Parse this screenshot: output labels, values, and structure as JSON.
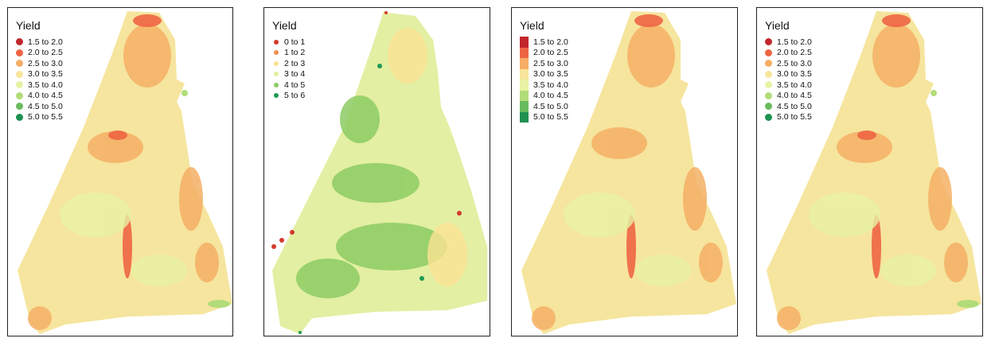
{
  "panels": [
    {
      "legend_title": "Yield",
      "symbol": "dot",
      "classes": [
        {
          "label": "1.5 to 2.0",
          "color": "#c2272d"
        },
        {
          "label": "2.0 to 2.5",
          "color": "#ee6543"
        },
        {
          "label": "2.5 to 3.0",
          "color": "#f6ad64"
        },
        {
          "label": "3.0 to 3.5",
          "color": "#f8e59b"
        },
        {
          "label": "3.5 to 4.0",
          "color": "#e8f2a4"
        },
        {
          "label": "4.0 to 4.5",
          "color": "#b2dc79"
        },
        {
          "label": "4.5 to 5.0",
          "color": "#69bb5e"
        },
        {
          "label": "5.0 to 5.5",
          "color": "#1e9150"
        }
      ]
    },
    {
      "legend_title": "Yield",
      "symbol": "small-dot",
      "classes": [
        {
          "label": "0 to 1",
          "color": "#d33a2c"
        },
        {
          "label": "1 to 2",
          "color": "#f28e50"
        },
        {
          "label": "2 to 3",
          "color": "#fbe293"
        },
        {
          "label": "3 to 4",
          "color": "#def0a0"
        },
        {
          "label": "4 to 5",
          "color": "#8dcc63"
        },
        {
          "label": "5 to 6",
          "color": "#1f9a55"
        }
      ]
    },
    {
      "legend_title": "Yield",
      "symbol": "square",
      "classes": [
        {
          "label": "1.5 to 2.0",
          "color": "#c2272d"
        },
        {
          "label": "2.0 to 2.5",
          "color": "#ee6543"
        },
        {
          "label": "2.5 to 3.0",
          "color": "#f6ad64"
        },
        {
          "label": "3.0 to 3.5",
          "color": "#f8e59b"
        },
        {
          "label": "3.5 to 4.0",
          "color": "#e8f2a4"
        },
        {
          "label": "4.0 to 4.5",
          "color": "#b2dc79"
        },
        {
          "label": "4.5 to 5.0",
          "color": "#69bb5e"
        },
        {
          "label": "5.0 to 5.5",
          "color": "#1e9150"
        }
      ]
    },
    {
      "legend_title": "Yield",
      "symbol": "dot",
      "classes": [
        {
          "label": "1.5 to 2.0",
          "color": "#c2272d"
        },
        {
          "label": "2.0 to 2.5",
          "color": "#ee6543"
        },
        {
          "label": "2.5 to 3.0",
          "color": "#f6ad64"
        },
        {
          "label": "3.0 to 3.5",
          "color": "#f8e59b"
        },
        {
          "label": "3.5 to 4.0",
          "color": "#e8f2a4"
        },
        {
          "label": "4.0 to 4.5",
          "color": "#b2dc79"
        },
        {
          "label": "4.5 to 5.0",
          "color": "#69bb5e"
        },
        {
          "label": "5.0 to 5.5",
          "color": "#1e9150"
        }
      ]
    }
  ]
}
